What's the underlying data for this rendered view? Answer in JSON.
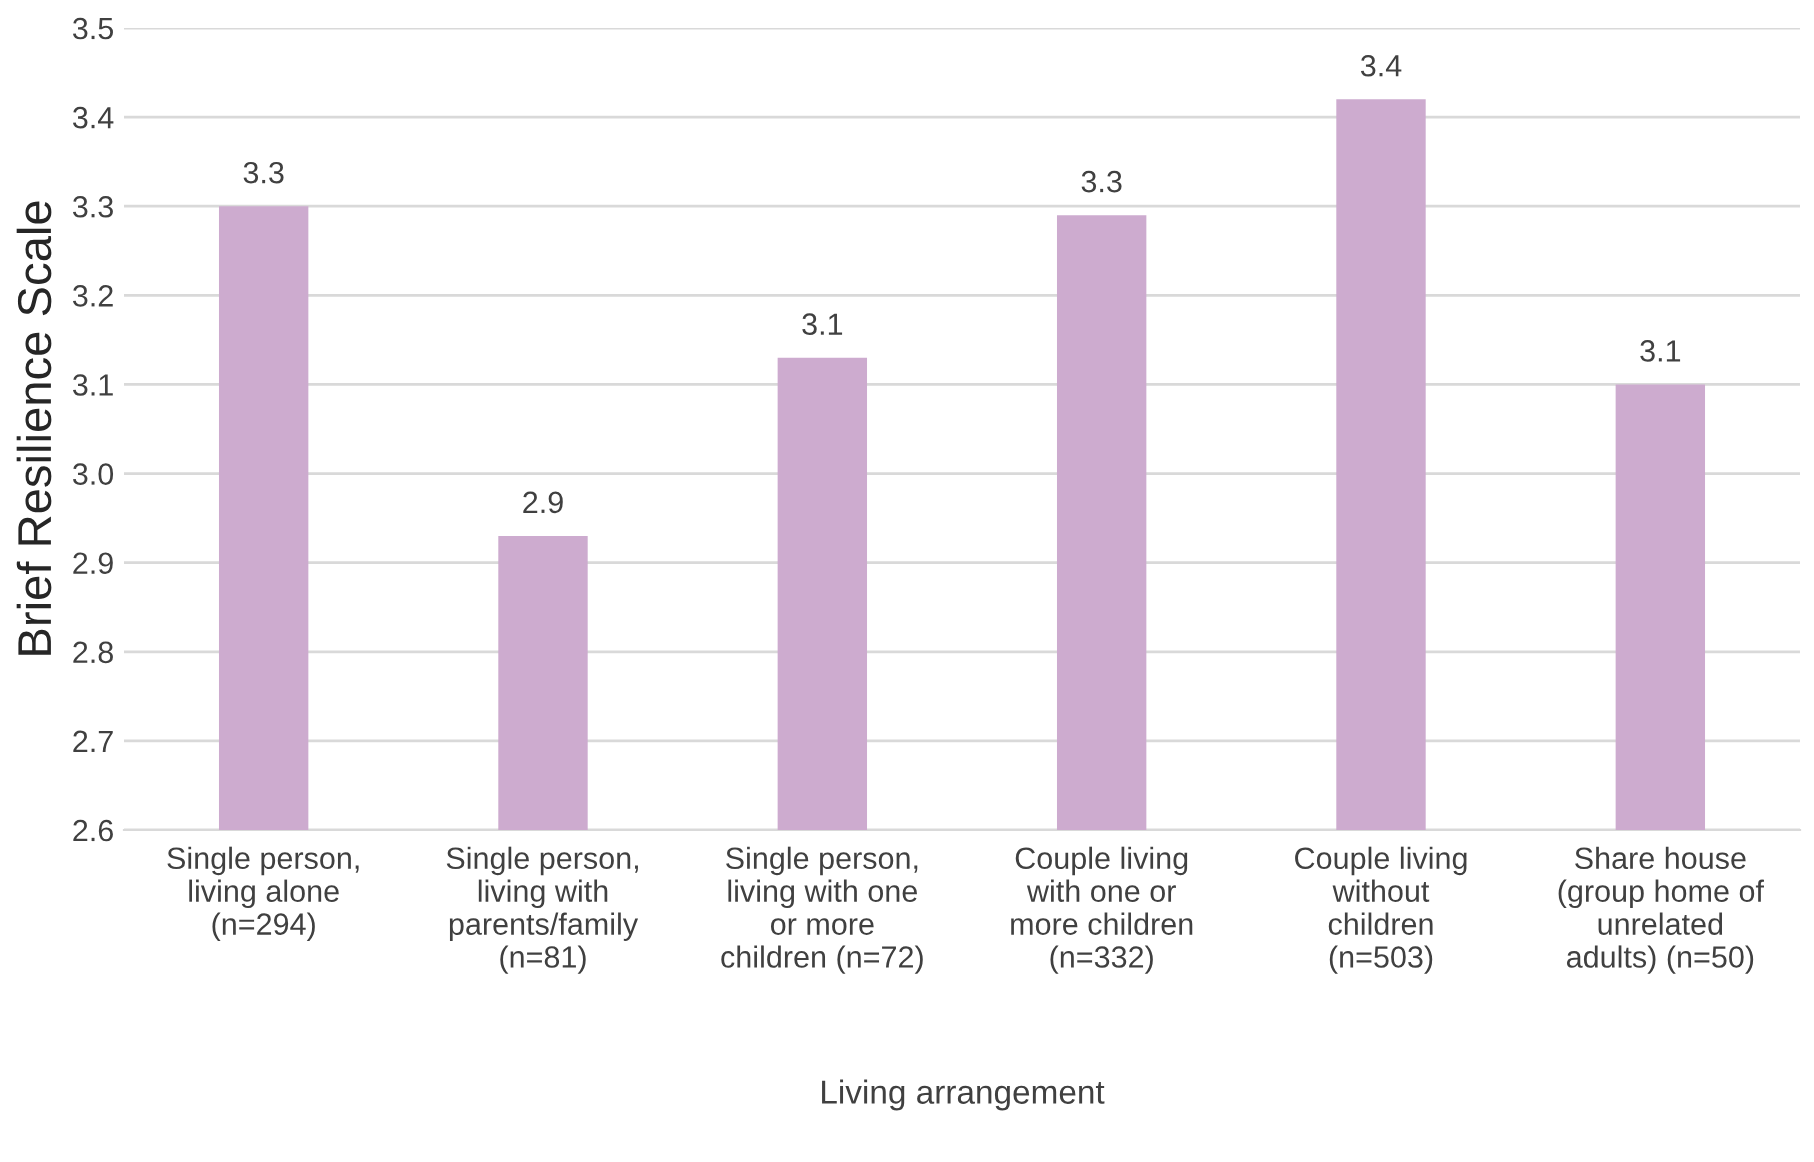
{
  "chart_data": {
    "type": "bar",
    "xlabel": "Living arrangement",
    "ylabel": "Brief Resilience Scale",
    "categories": [
      "Single person,\nliving alone\n(n=294)",
      "Single person,\nliving with\nparents/family\n(n=81)",
      "Single person,\nliving with one\nor more\nchildren (n=72)",
      "Couple living\nwith one or\nmore children\n(n=332)",
      "Couple living\nwithout\nchildren\n(n=503)",
      "Share house\n(group home of\nunrelated\nadults) (n=50)"
    ],
    "values": [
      3.3,
      2.93,
      3.13,
      3.29,
      3.42,
      3.1
    ],
    "value_labels": [
      "3.3",
      "2.9",
      "3.1",
      "3.3",
      "3.4",
      "3.1"
    ],
    "color": "#cdabcf",
    "ylim": [
      2.6,
      3.5
    ],
    "yticks": [
      {
        "value": 2.6,
        "label": "2.6"
      },
      {
        "value": 2.7,
        "label": "2.7"
      },
      {
        "value": 2.8,
        "label": "2.8"
      },
      {
        "value": 2.9,
        "label": "2.9"
      },
      {
        "value": 3.0,
        "label": "3.0"
      },
      {
        "value": 3.1,
        "label": "3.1"
      },
      {
        "value": 3.2,
        "label": "3.2"
      },
      {
        "value": 3.3,
        "label": "3.3"
      },
      {
        "value": 3.4,
        "label": "3.4"
      },
      {
        "value": 3.5,
        "label": "3.5"
      }
    ],
    "grid": "y",
    "legend": false
  }
}
